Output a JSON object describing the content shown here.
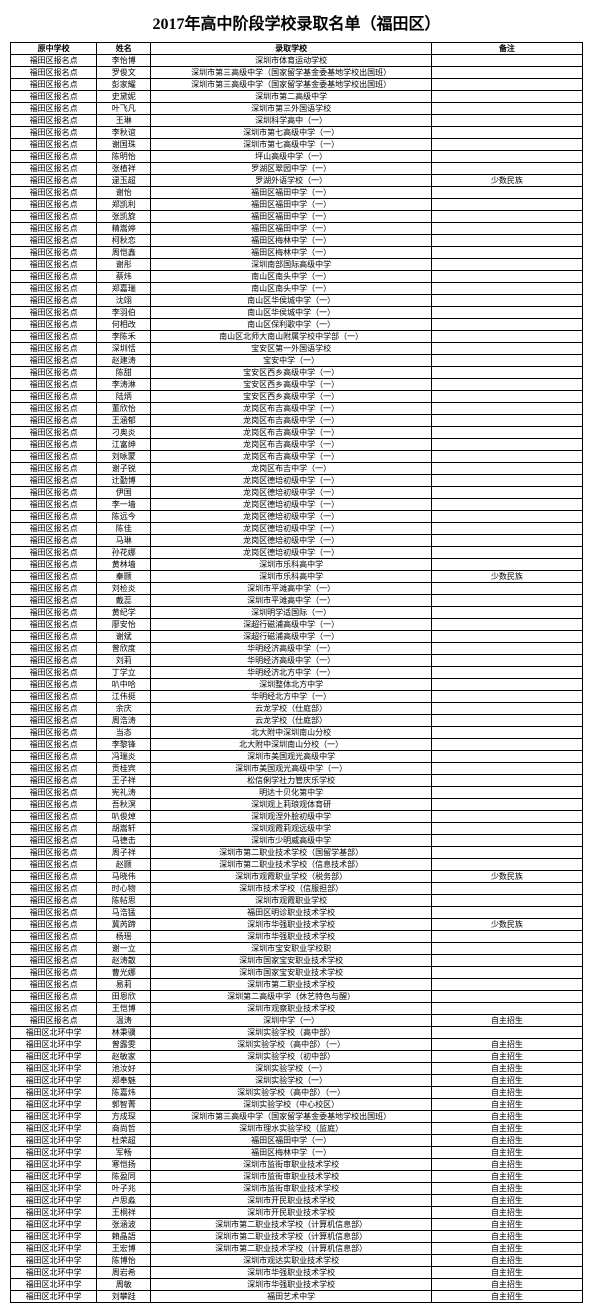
{
  "title": "2017年高中阶段学校录取名单（福田区）",
  "headers": [
    "原中学校",
    "姓名",
    "录取学校",
    "备注"
  ],
  "rows": [
    [
      "福田区报名点",
      "李怡博",
      "深圳市体育运动学校",
      ""
    ],
    [
      "福田区报名点",
      "罗俊文",
      "深圳市第三高级中学（国家留学基金委基地学校出国班）",
      ""
    ],
    [
      "福田区报名点",
      "彭家耀",
      "深圳市第三高级中学（国家留学基金委基地学校出国班）",
      ""
    ],
    [
      "福田区报名点",
      "史黛妮",
      "深圳市第二高级中学",
      ""
    ],
    [
      "福田区报名点",
      "叶飞凡",
      "深圳市第三外国语学校",
      ""
    ],
    [
      "福田区报名点",
      "王琳",
      "深圳科学高中（一）",
      ""
    ],
    [
      "福田区报名点",
      "李秋谊",
      "深圳市第七高级中学（一）",
      ""
    ],
    [
      "福田区报名点",
      "谢国珠",
      "深圳市第七高级中学（一）",
      ""
    ],
    [
      "福田区报名点",
      "陈明怡",
      "坪山高级中学（一）",
      ""
    ],
    [
      "福田区报名点",
      "张植祥",
      "罗湖区翠园中学（一）",
      ""
    ],
    [
      "福田区报名点",
      "逯玉超",
      "罗湖外语学校（一）",
      "少数民族"
    ],
    [
      "福田区报名点",
      "谢怡",
      "福田区福田中学（一）",
      ""
    ],
    [
      "福田区报名点",
      "郑凯利",
      "福田区福田中学（一）",
      ""
    ],
    [
      "福田区报名点",
      "张凯旋",
      "福田区福田中学（一）",
      ""
    ],
    [
      "福田区报名点",
      "精嵩婷",
      "福田区福田中学（一）",
      ""
    ],
    [
      "福田区报名点",
      "柯秋恋",
      "福田区梅林中学（一）",
      ""
    ],
    [
      "福田区报名点",
      "周恺鑫",
      "福田区梅林中学（一）",
      ""
    ],
    [
      "福田区报名点",
      "谢彤",
      "深圳南部国际高级中学",
      ""
    ],
    [
      "福田区报名点",
      "蔡炜",
      "南山区南头中学（一）",
      ""
    ],
    [
      "福田区报名点",
      "郑嘉瑞",
      "南山区南头中学（一）",
      ""
    ],
    [
      "福田区报名点",
      "沈翊",
      "南山区华侯城中学（一）",
      ""
    ],
    [
      "福田区报名点",
      "李羽伯",
      "南山区华侯城中学（一）",
      ""
    ],
    [
      "福田区报名点",
      "何相改",
      "南山区保利歌中学（一）",
      ""
    ],
    [
      "福田区报名点",
      "李陈禾",
      "南山区北师大南山附属学校中学部（一）",
      ""
    ],
    [
      "福田区报名点",
      "深圳恬",
      "宝安区第一外国语学校",
      ""
    ],
    [
      "福田区报名点",
      "赵建涛",
      "宝安中学（一）",
      ""
    ],
    [
      "福田区报名点",
      "陈甜",
      "宝安区西乡高级中学（一）",
      ""
    ],
    [
      "福田区报名点",
      "李涛淋",
      "宝安区西乡高级中学（一）",
      ""
    ],
    [
      "福田区报名点",
      "陆炳",
      "宝安区西乡高级中学（一）",
      ""
    ],
    [
      "福田区报名点",
      "董欣怡",
      "龙岗区布吉高级中学（一）",
      ""
    ],
    [
      "福田区报名点",
      "王涵郁",
      "龙岗区布吉高级中学（一）",
      ""
    ],
    [
      "福田区报名点",
      "刁奥炎",
      "龙岗区布吉高级中学（一）",
      ""
    ],
    [
      "福田区报名点",
      "江富绅",
      "龙岗区布吉高级中学（一）",
      ""
    ],
    [
      "福田区报名点",
      "刘咏蒙",
      "龙岗区布吉高级中学（一）",
      ""
    ],
    [
      "福田区报名点",
      "谢子锐",
      "龙岗区布吉中学（一）",
      ""
    ],
    [
      "福田区报名点",
      "辻勤博",
      "龙岗区德培初级中学（一）",
      ""
    ],
    [
      "福田区报名点",
      "伊国",
      "龙岗区德培初级中学（一）",
      ""
    ],
    [
      "福田区报名点",
      "李一墙",
      "龙岗区德培初级中学（一）",
      ""
    ],
    [
      "福田区报名点",
      "陈远今",
      "龙岗区德培初级中学（一）",
      ""
    ],
    [
      "福田区报名点",
      "陈佳",
      "龙岗区德培初级中学（一）",
      ""
    ],
    [
      "福田区报名点",
      "马琳",
      "龙岗区德培初级中学（一）",
      ""
    ],
    [
      "福田区报名点",
      "孙花娜",
      "龙岗区德培初级中学（一）",
      ""
    ],
    [
      "福田区报名点",
      "黄林墙",
      "深圳市乐科高中学",
      ""
    ],
    [
      "福田区报名点",
      "秦颢",
      "深圳市乐科高中学",
      "少数民族"
    ],
    [
      "福田区报名点",
      "刘检炎",
      "深圳市平滩高中学（一）",
      ""
    ],
    [
      "福田区报名点",
      "戴蕊",
      "深圳市平滩高中学（一）",
      ""
    ],
    [
      "福田区报名点",
      "黄纪学",
      "深圳明学适国际（一）",
      ""
    ],
    [
      "福田区报名点",
      "廖安怡",
      "深超行磁浦高级中学（一）",
      ""
    ],
    [
      "福田区报名点",
      "谢斌",
      "深超行磁浦高级中学（一）",
      ""
    ],
    [
      "福田区报名点",
      "曾欣度",
      "华明经济高级中学（一）",
      ""
    ],
    [
      "福田区报名点",
      "刘莉",
      "华明经济高级中学（一）",
      ""
    ],
    [
      "福田区报名点",
      "丁学立",
      "华明经济北方中学（一）",
      ""
    ],
    [
      "福田区报名点",
      "叭中哈",
      "深圳整体北方中学",
      ""
    ],
    [
      "福田区报名点",
      "江伟挺",
      "华明经北方中学（一）",
      ""
    ],
    [
      "福田区报名点",
      "余庆",
      "云龙学校（仕庭部）",
      ""
    ],
    [
      "福田区报名点",
      "周浩涛",
      "云龙学校（仕庭部）",
      ""
    ],
    [
      "福田区报名点",
      "当态",
      "北大附中深圳南山分校",
      ""
    ],
    [
      "福田区报名点",
      "李黎锋",
      "北大附中深圳南山分校（一）",
      ""
    ],
    [
      "福田区报名点",
      "冯瑞炎",
      "深圳市美国观光高级中学",
      ""
    ],
    [
      "福田区报名点",
      "贡桂宾",
      "深圳市美国观光高级中学（一）",
      ""
    ],
    [
      "福田区报名点",
      "王子祥",
      "松信俐学社力管庆乐学校",
      ""
    ],
    [
      "福田区报名点",
      "宪礼涛",
      "明达十贝化第中学",
      ""
    ],
    [
      "福田区报名点",
      "吾秋溟",
      "深圳观上莉琅观体育研",
      ""
    ],
    [
      "福田区报名点",
      "叭俊焯",
      "深圳观涅外脍初级中学",
      ""
    ],
    [
      "福田区报名点",
      "胡嵩轩",
      "深圳观霞莉观远级中学",
      ""
    ],
    [
      "福田区报名点",
      "马德击",
      "深圳市少明威高级中学",
      ""
    ],
    [
      "福田区报名点",
      "周子祥",
      "深圳市第二职业技术学校（国留学基部）",
      ""
    ],
    [
      "福田区报名点",
      "赵颢",
      "深圳市第二职业技术学校（信息技术部）",
      ""
    ],
    [
      "福田区报名点",
      "马晓伟",
      "深圳市观霞职业学校（税务部）",
      "少数民族"
    ],
    [
      "福田区报名点",
      "时心物",
      "深圳市技术学校（信服担部）",
      ""
    ],
    [
      "福田区报名点",
      "陈帖思",
      "深圳市观霞职业学校",
      ""
    ],
    [
      "福田区报名点",
      "马浩猛",
      "福田区明诊职业技术学校",
      ""
    ],
    [
      "福田区报名点",
      "冀芮蹄",
      "深圳市华强职业技术学校",
      "少数民族"
    ],
    [
      "福田区报名点",
      "杨瑶",
      "深圳市华强职业技术学校",
      ""
    ],
    [
      "福田区报名点",
      "谢一立",
      "深圳市宝安职业学校职",
      ""
    ],
    [
      "福田区报名点",
      "赵涛散",
      "深圳市国家宝安职业技术学校",
      ""
    ],
    [
      "福田区报名点",
      "曹光娜",
      "深圳市国家宝安职业技术学校",
      ""
    ],
    [
      "福田区报名点",
      "易莉",
      "深圳市第二职业技术学校",
      ""
    ],
    [
      "福田区报名点",
      "田恩欣",
      "深圳第二高级中学（休艺特色与醒）",
      ""
    ],
    [
      "福田区报名点",
      "王恺博",
      "深圳市观察职业技术学校",
      ""
    ],
    [
      "福田区报名点",
      "温涛",
      "深圳中学（一）",
      "自主招生"
    ],
    [
      "福田区北环中学",
      "林秉骥",
      "深圳实验学校（高中部）",
      ""
    ],
    [
      "福田区北环中学",
      "曾露雯",
      "深圳实验学校（高中部）（一）",
      "自主招生"
    ],
    [
      "福田区北环中学",
      "赵敏家",
      "深圳实验学校（初中部）",
      "自主招生"
    ],
    [
      "福田区北环中学",
      "池汝好",
      "深圳实验学校（一）",
      "自主招生"
    ],
    [
      "福田区北环中学",
      "郑奉魅",
      "深圳实验学校（一）",
      "自主招生"
    ],
    [
      "福田区北环中学",
      "陈嘉炜",
      "深圳实验学校（高中部）（一）",
      "自主招生"
    ],
    [
      "福田区北环中学",
      "郭智菁",
      "深圳实验学校（中心校区）",
      "自主招生"
    ],
    [
      "福田区北环中学",
      "方成琛",
      "深圳市第三高级中学（国家留学基金委基地学校出国班）",
      "自主招生"
    ],
    [
      "福田区北环中学",
      "商尚哲",
      "深圳市理水实验学校（监庭）",
      "自主招生"
    ],
    [
      "福田区北环中学",
      "杜荣超",
      "福田区福田中学（一）",
      "自主招生"
    ],
    [
      "福田区北环中学",
      "军畅",
      "福田区梅林中学（一）",
      "自主招生"
    ],
    [
      "福田区北环中学",
      "寒恺扬",
      "深圳市监街审职业技术学校",
      "自主招生"
    ],
    [
      "福田区北环中学",
      "陈盈同",
      "深圳市监街审职业技术学校",
      "自主招生"
    ],
    [
      "福田区北环中学",
      "叶子兆",
      "深圳市监街审职业技术学校",
      "自主招生"
    ],
    [
      "福田区北环中学",
      "卢思淼",
      "深圳市开民职业技术学校",
      "自主招生"
    ],
    [
      "福田区北环中学",
      "王桐祥",
      "深圳市开民职业技术学校",
      "自主招生"
    ],
    [
      "福田区北环中学",
      "张涵波",
      "深圳市第二职业技术学校（计算机信息部）",
      "自主招生"
    ],
    [
      "福田区北环中学",
      "賴晶語",
      "深圳市第二职业技术学校（计算机信息部）",
      "自主招生"
    ],
    [
      "福田区北环中学",
      "王宏博",
      "深圳市第二职业技术学校（计算机信息部）",
      "自主招生"
    ],
    [
      "福田区北环中学",
      "陈博怡",
      "深圳市观达实职业技术学校",
      "自主招生"
    ],
    [
      "福田区北环中学",
      "周岩希",
      "深圳市华强职业技术学校",
      "自主招生"
    ],
    [
      "福田区北环中学",
      "周敏",
      "深圳市华强职业技术学校",
      "自主招生"
    ],
    [
      "福田区北环中学",
      "刘攀跬",
      "福田艺术中学",
      "自主招生"
    ]
  ]
}
